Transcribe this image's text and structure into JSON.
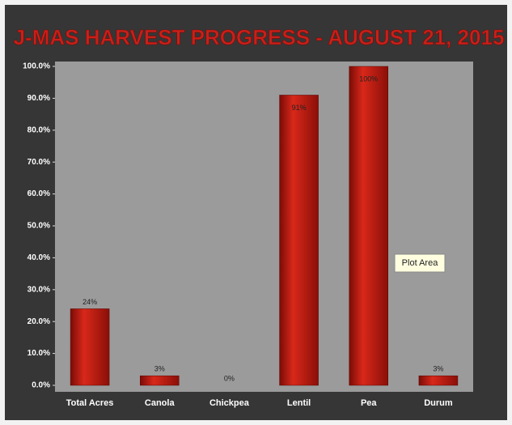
{
  "chart_data": {
    "type": "bar",
    "title": "J-MAS HARVEST PROGRESS - AUGUST 21, 2015",
    "categories": [
      "Total Acres",
      "Canola",
      "Chickpea",
      "Lentil",
      "Pea",
      "Durum"
    ],
    "values": [
      24,
      3,
      0,
      91,
      100,
      3
    ],
    "value_labels": [
      "24%",
      "3%",
      "0%",
      "91%",
      "100%",
      "3%"
    ],
    "color": "#b01a10",
    "ylim": [
      0,
      100
    ],
    "yticks": [
      {
        "value": 0,
        "label": "0.0%"
      },
      {
        "value": 10,
        "label": "10.0%"
      },
      {
        "value": 20,
        "label": "20.0%"
      },
      {
        "value": 30,
        "label": "30.0%"
      },
      {
        "value": 40,
        "label": "40.0%"
      },
      {
        "value": 50,
        "label": "50.0%"
      },
      {
        "value": 60,
        "label": "60.0%"
      },
      {
        "value": 70,
        "label": "70.0%"
      },
      {
        "value": 80,
        "label": "80.0%"
      },
      {
        "value": 90,
        "label": "90.0%"
      },
      {
        "value": 100,
        "label": "100.0%"
      }
    ],
    "annotation": "Plot Area"
  }
}
